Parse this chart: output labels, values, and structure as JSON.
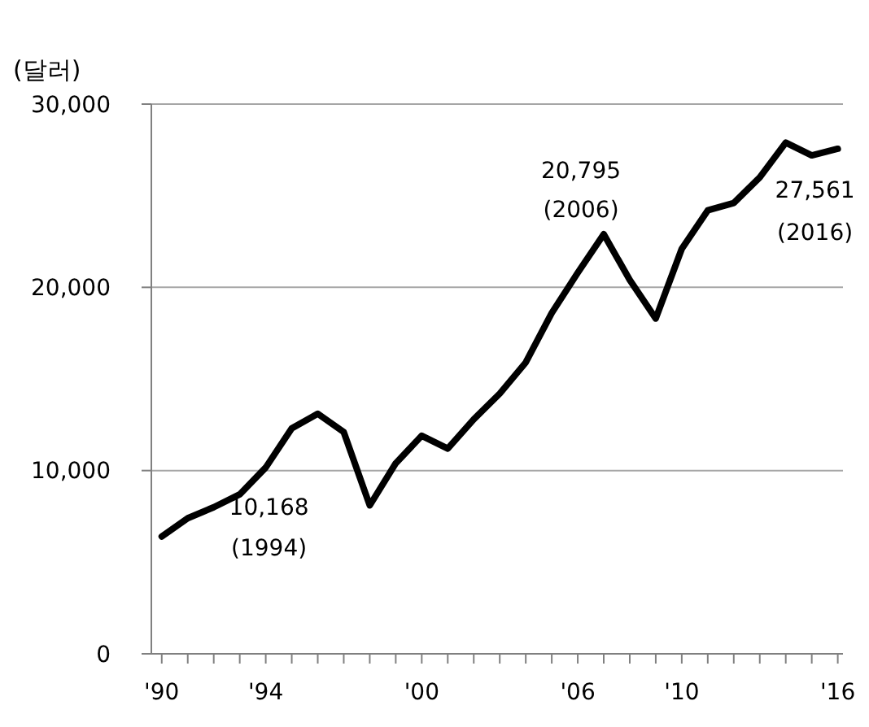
{
  "chart_data": {
    "type": "line",
    "ylabel": "(달러)",
    "x": [
      1990,
      1991,
      1992,
      1993,
      1994,
      1995,
      1996,
      1997,
      1998,
      1999,
      2000,
      2001,
      2002,
      2003,
      2004,
      2005,
      2006,
      2007,
      2008,
      2009,
      2010,
      2011,
      2012,
      2013,
      2014,
      2015,
      2016
    ],
    "series": [
      {
        "color": "#000000",
        "values": [
          6400,
          7400,
          8000,
          8700,
          10168,
          12300,
          13100,
          12100,
          8100,
          10400,
          11900,
          11200,
          12800,
          14200,
          15900,
          18600,
          20795,
          22900,
          20400,
          18300,
          22100,
          24200,
          24600,
          26000,
          27900,
          27200,
          27561
        ]
      }
    ],
    "xlim": [
      1989.6,
      2016.2
    ],
    "xticks": [
      {
        "value": 1990,
        "label": "'90"
      },
      {
        "value": 1991,
        "label": null
      },
      {
        "value": 1992,
        "label": null
      },
      {
        "value": 1993,
        "label": null
      },
      {
        "value": 1994,
        "label": "'94"
      },
      {
        "value": 1995,
        "label": null
      },
      {
        "value": 1996,
        "label": null
      },
      {
        "value": 1997,
        "label": null
      },
      {
        "value": 1998,
        "label": null
      },
      {
        "value": 1999,
        "label": null
      },
      {
        "value": 2000,
        "label": "'00"
      },
      {
        "value": 2001,
        "label": null
      },
      {
        "value": 2002,
        "label": null
      },
      {
        "value": 2003,
        "label": null
      },
      {
        "value": 2004,
        "label": null
      },
      {
        "value": 2005,
        "label": null
      },
      {
        "value": 2006,
        "label": "'06"
      },
      {
        "value": 2007,
        "label": null
      },
      {
        "value": 2008,
        "label": null
      },
      {
        "value": 2009,
        "label": null
      },
      {
        "value": 2010,
        "label": "'10"
      },
      {
        "value": 2011,
        "label": null
      },
      {
        "value": 2012,
        "label": null
      },
      {
        "value": 2013,
        "label": null
      },
      {
        "value": 2014,
        "label": null
      },
      {
        "value": 2015,
        "label": null
      },
      {
        "value": 2016,
        "label": "'16"
      }
    ],
    "ylim": [
      0,
      30000
    ],
    "yticks": [
      0,
      {
        "value": 10000,
        "label": "10,000"
      },
      {
        "value": 20000,
        "label": "20,000"
      },
      {
        "value": 30000,
        "label": "30,000"
      }
    ],
    "grid": "y",
    "marker": "none",
    "line_style": "solid",
    "annotations": [
      {
        "text": "10,168\n(1994)",
        "x": 1994,
        "y": 10168
      },
      {
        "text": "20,795\n(2006)",
        "x": 2006,
        "y": 20795
      },
      {
        "text": "27,561\n(2016)",
        "x": 2016,
        "y": 27561
      }
    ]
  }
}
